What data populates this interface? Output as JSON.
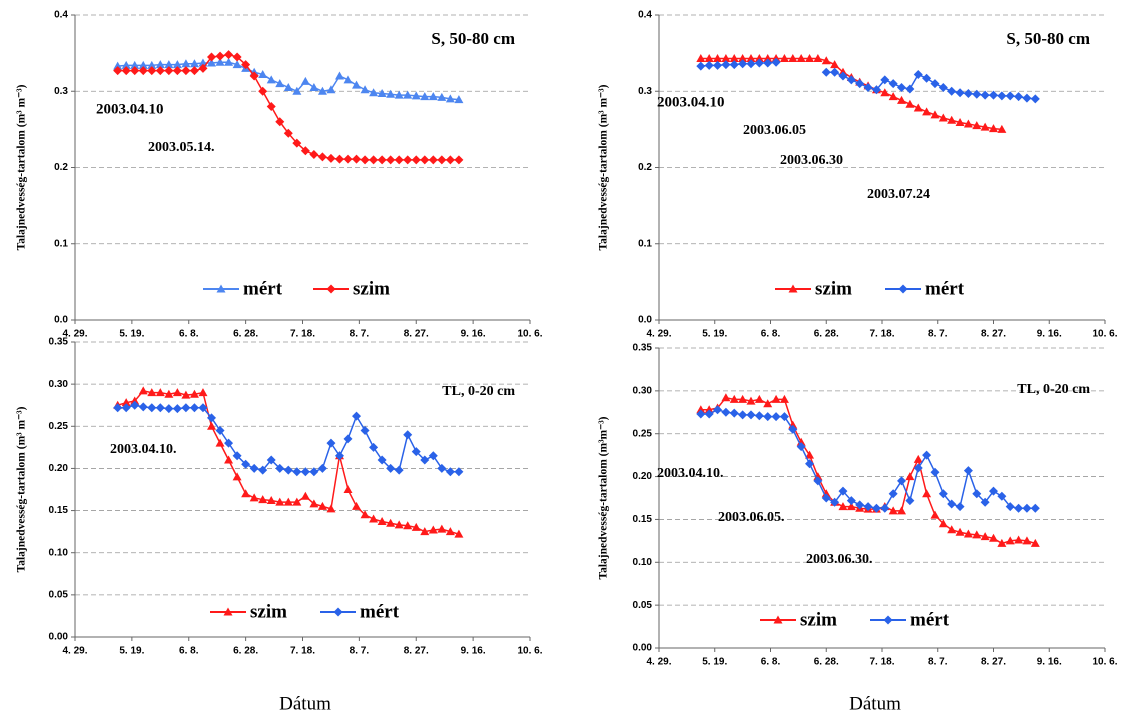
{
  "chart_data": [
    {
      "type": "line",
      "title": "S, 50-80 cm",
      "ylabel": "Talajnedvesség-tartalom (m³ m⁻³)",
      "annotations": [
        "2003.04.10",
        "2003.05.14."
      ],
      "x": [
        134,
        137,
        140,
        143,
        146,
        149,
        152,
        155,
        158,
        161,
        164,
        167,
        170,
        173,
        176,
        179,
        182,
        185,
        188,
        191,
        194,
        197,
        200,
        203,
        206,
        209,
        212,
        215,
        218,
        221,
        224,
        227,
        230,
        233,
        236,
        239,
        242,
        245,
        248,
        251,
        254
      ],
      "xlim": [
        119,
        279
      ],
      "xticks": [
        {
          "value": 119,
          "label": "4. 29."
        },
        {
          "value": 139,
          "label": "5. 19."
        },
        {
          "value": 159,
          "label": "6. 8."
        },
        {
          "value": 179,
          "label": "6. 28."
        },
        {
          "value": 199,
          "label": "7. 18."
        },
        {
          "value": 219,
          "label": "8. 7."
        },
        {
          "value": 239,
          "label": "8. 27."
        },
        {
          "value": 259,
          "label": "9. 16."
        },
        {
          "value": 279,
          "label": "10. 6."
        }
      ],
      "ylim": [
        0,
        0.4
      ],
      "yticks": [
        {
          "value": 0,
          "label": "0.0"
        },
        0.1,
        0.2,
        0.3,
        0.4
      ],
      "grid": true,
      "series": [
        {
          "name": "mért",
          "color": "#4d86f0",
          "marker": "triangle",
          "values": [
            0.333,
            0.334,
            0.334,
            0.334,
            0.334,
            0.335,
            0.335,
            0.335,
            0.336,
            0.336,
            0.337,
            0.337,
            0.338,
            0.338,
            0.335,
            0.33,
            0.325,
            0.322,
            0.315,
            0.31,
            0.305,
            0.3,
            0.313,
            0.305,
            0.3,
            0.302,
            0.32,
            0.315,
            0.308,
            0.302,
            0.298,
            0.297,
            0.296,
            0.295,
            0.295,
            0.294,
            0.293,
            0.293,
            0.292,
            0.29,
            0.289
          ]
        },
        {
          "name": "szim",
          "color": "#ff1a1a",
          "marker": "diamond",
          "values": [
            0.327,
            0.327,
            0.327,
            0.327,
            0.327,
            0.327,
            0.327,
            0.327,
            0.327,
            0.327,
            0.33,
            0.345,
            0.346,
            0.348,
            0.345,
            0.335,
            0.32,
            0.3,
            0.28,
            0.26,
            0.245,
            0.232,
            0.222,
            0.217,
            0.214,
            0.212,
            0.211,
            0.211,
            0.211,
            0.21,
            0.21,
            0.21,
            0.21,
            0.21,
            0.21,
            0.21,
            0.21,
            0.21,
            0.21,
            0.21,
            0.21
          ]
        }
      ]
    },
    {
      "type": "line",
      "title": "S, 50-80 cm",
      "ylabel": "Talajnedvesség-tartalom (m³ m⁻³)",
      "annotations": [
        "2003.04.10",
        "2003.06.05",
        "2003.06.30",
        "2003.07.24"
      ],
      "x": [
        134,
        137,
        140,
        143,
        146,
        149,
        152,
        155,
        158,
        161,
        164,
        167,
        170,
        173,
        176,
        179,
        182,
        185,
        188,
        191,
        194,
        197,
        200,
        203,
        206,
        209,
        212,
        215,
        218,
        221,
        224,
        227,
        230,
        233,
        236,
        239,
        242,
        245,
        248,
        251,
        254
      ],
      "xlim": [
        119,
        279
      ],
      "xticks": [
        {
          "value": 119,
          "label": "4. 29."
        },
        {
          "value": 139,
          "label": "5. 19."
        },
        {
          "value": 159,
          "label": "6. 8."
        },
        {
          "value": 179,
          "label": "6. 28."
        },
        {
          "value": 199,
          "label": "7. 18."
        },
        {
          "value": 219,
          "label": "8. 7."
        },
        {
          "value": 239,
          "label": "8. 27."
        },
        {
          "value": 259,
          "label": "9. 16."
        },
        {
          "value": 279,
          "label": "10. 6."
        }
      ],
      "ylim": [
        0,
        0.4
      ],
      "yticks": [
        {
          "value": 0,
          "label": "0.0"
        },
        0.1,
        0.2,
        0.3,
        0.4
      ],
      "grid": true,
      "series": [
        {
          "name": "szim",
          "color": "#ff1a1a",
          "marker": "triangle",
          "values": [
            0.343,
            0.343,
            0.343,
            0.343,
            0.343,
            0.343,
            0.343,
            0.343,
            0.343,
            0.343,
            0.343,
            0.343,
            0.343,
            0.343,
            0.343,
            0.34,
            0.335,
            0.325,
            0.318,
            0.312,
            0.307,
            0.302,
            0.298,
            0.293,
            0.288,
            0.283,
            0.278,
            0.273,
            0.269,
            0.265,
            0.262,
            0.259,
            0.257,
            0.255,
            0.253,
            0.251,
            0.25,
            null,
            null,
            null,
            null
          ]
        },
        {
          "name": "mért",
          "color": "#2a62e8",
          "marker": "diamond",
          "values": [
            0.333,
            0.334,
            0.334,
            0.335,
            0.335,
            0.336,
            0.336,
            0.337,
            0.337,
            0.338,
            null,
            null,
            null,
            null,
            null,
            0.325,
            0.325,
            0.32,
            0.315,
            0.31,
            0.305,
            0.302,
            0.315,
            0.31,
            0.305,
            0.303,
            0.322,
            0.317,
            0.31,
            0.305,
            0.3,
            0.298,
            0.297,
            0.296,
            0.295,
            0.295,
            0.294,
            0.294,
            0.293,
            0.291,
            0.29
          ]
        }
      ]
    },
    {
      "type": "line",
      "title": "TL, 0-20 cm",
      "ylabel": "Talajnedvesség-tartalom (m³ m⁻³)",
      "xlabel": "Dátum",
      "annotations": [
        "2003.04.10."
      ],
      "x": [
        134,
        137,
        140,
        143,
        146,
        149,
        152,
        155,
        158,
        161,
        164,
        167,
        170,
        173,
        176,
        179,
        182,
        185,
        188,
        191,
        194,
        197,
        200,
        203,
        206,
        209,
        212,
        215,
        218,
        221,
        224,
        227,
        230,
        233,
        236,
        239,
        242,
        245,
        248,
        251,
        254
      ],
      "xlim": [
        119,
        279
      ],
      "xticks": [
        {
          "value": 119,
          "label": "4. 29."
        },
        {
          "value": 139,
          "label": "5. 19."
        },
        {
          "value": 159,
          "label": "6. 8."
        },
        {
          "value": 179,
          "label": "6. 28."
        },
        {
          "value": 199,
          "label": "7. 18."
        },
        {
          "value": 219,
          "label": "8. 7."
        },
        {
          "value": 239,
          "label": "8. 27."
        },
        {
          "value": 259,
          "label": "9. 16."
        },
        {
          "value": 279,
          "label": "10. 6."
        }
      ],
      "ylim": [
        0,
        0.35
      ],
      "yticks": [
        {
          "value": 0,
          "label": "0.00"
        },
        0.05,
        {
          "value": 0.1,
          "label": "0.10"
        },
        0.15,
        {
          "value": 0.2,
          "label": "0.20"
        },
        0.25,
        {
          "value": 0.3,
          "label": "0.30"
        },
        0.35
      ],
      "grid": true,
      "series": [
        {
          "name": "szim",
          "color": "#ff1a1a",
          "marker": "triangle",
          "values": [
            0.275,
            0.278,
            0.28,
            0.292,
            0.29,
            0.29,
            0.288,
            0.29,
            0.287,
            0.288,
            0.29,
            0.25,
            0.23,
            0.21,
            0.19,
            0.17,
            0.165,
            0.163,
            0.162,
            0.16,
            0.16,
            0.16,
            0.167,
            0.158,
            0.155,
            0.152,
            0.215,
            0.175,
            0.155,
            0.145,
            0.14,
            0.137,
            0.135,
            0.133,
            0.132,
            0.13,
            0.125,
            0.127,
            0.128,
            0.125,
            0.122
          ]
        },
        {
          "name": "mért",
          "color": "#2a62e8",
          "marker": "diamond",
          "values": [
            0.272,
            0.272,
            0.275,
            0.273,
            0.272,
            0.272,
            0.271,
            0.271,
            0.272,
            0.272,
            0.272,
            0.26,
            0.245,
            0.23,
            0.215,
            0.205,
            0.2,
            0.198,
            0.21,
            0.2,
            0.198,
            0.196,
            0.196,
            0.196,
            0.2,
            0.23,
            0.215,
            0.235,
            0.262,
            0.245,
            0.225,
            0.21,
            0.2,
            0.198,
            0.24,
            0.22,
            0.21,
            0.215,
            0.2,
            0.196,
            0.196
          ]
        }
      ]
    },
    {
      "type": "line",
      "title": "TL, 0-20 cm",
      "ylabel": "Talajnedvesség-tartalom (m³m⁻³)",
      "xlabel": "Dátum",
      "annotations": [
        "2003.04.10.",
        "2003.06.05.",
        "2003.06.30."
      ],
      "x": [
        134,
        137,
        140,
        143,
        146,
        149,
        152,
        155,
        158,
        161,
        164,
        167,
        170,
        173,
        176,
        179,
        182,
        185,
        188,
        191,
        194,
        197,
        200,
        203,
        206,
        209,
        212,
        215,
        218,
        221,
        224,
        227,
        230,
        233,
        236,
        239,
        242,
        245,
        248,
        251,
        254
      ],
      "xlim": [
        119,
        279
      ],
      "xticks": [
        {
          "value": 119,
          "label": "4. 29."
        },
        {
          "value": 139,
          "label": "5. 19."
        },
        {
          "value": 159,
          "label": "6. 8."
        },
        {
          "value": 179,
          "label": "6. 28."
        },
        {
          "value": 199,
          "label": "7. 18."
        },
        {
          "value": 219,
          "label": "8. 7."
        },
        {
          "value": 239,
          "label": "8. 27."
        },
        {
          "value": 259,
          "label": "9. 16."
        },
        {
          "value": 279,
          "label": "10. 6."
        }
      ],
      "ylim": [
        0,
        0.35
      ],
      "yticks": [
        {
          "value": 0,
          "label": "0.00"
        },
        0.05,
        {
          "value": 0.1,
          "label": "0.10"
        },
        0.15,
        {
          "value": 0.2,
          "label": "0.20"
        },
        0.25,
        {
          "value": 0.3,
          "label": "0.30"
        },
        0.35
      ],
      "grid": true,
      "series": [
        {
          "name": "szim",
          "color": "#ff1a1a",
          "marker": "triangle",
          "values": [
            0.278,
            0.278,
            0.28,
            0.292,
            0.29,
            0.29,
            0.288,
            0.29,
            0.285,
            0.29,
            0.29,
            0.26,
            0.24,
            0.225,
            0.2,
            0.18,
            0.17,
            0.165,
            0.165,
            0.163,
            0.162,
            0.162,
            0.165,
            0.16,
            0.16,
            0.2,
            0.22,
            0.18,
            0.155,
            0.145,
            0.138,
            0.135,
            0.133,
            0.132,
            0.13,
            0.128,
            0.122,
            0.125,
            0.126,
            0.125,
            0.122
          ]
        },
        {
          "name": "mért",
          "color": "#2a62e8",
          "marker": "diamond",
          "values": [
            0.273,
            0.273,
            0.278,
            0.275,
            0.274,
            0.272,
            0.272,
            0.271,
            0.27,
            0.27,
            0.27,
            0.255,
            0.235,
            0.215,
            0.195,
            0.175,
            0.17,
            0.183,
            0.172,
            0.167,
            0.165,
            0.163,
            0.163,
            0.18,
            0.195,
            0.172,
            0.21,
            0.225,
            0.205,
            0.18,
            0.168,
            0.165,
            0.207,
            0.18,
            0.17,
            0.183,
            0.177,
            0.165,
            0.163,
            0.163,
            0.163
          ]
        }
      ]
    }
  ]
}
